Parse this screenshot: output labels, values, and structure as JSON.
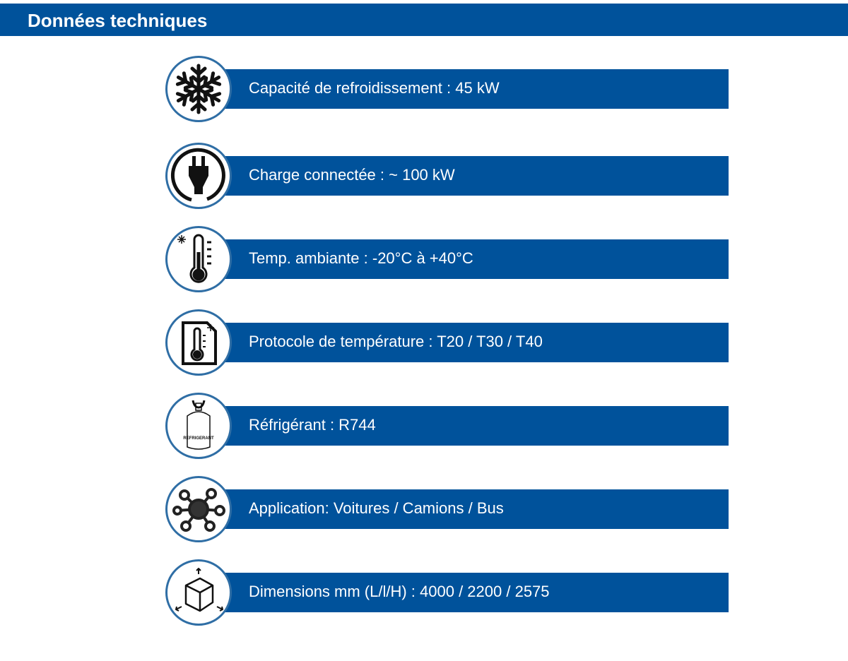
{
  "header": {
    "title": "Données techniques"
  },
  "colors": {
    "brand": "#00529b",
    "circle_border": "#2f6ea5"
  },
  "items": [
    {
      "icon": "snowflake-icon",
      "label": "Capacité de refroidissement : 45 kW"
    },
    {
      "icon": "plug-icon",
      "label": "Charge connectée : ~ 100 kW"
    },
    {
      "icon": "thermometer-icon",
      "label": "Temp. ambiante : -20°C à +40°C"
    },
    {
      "icon": "temperature-protocol-icon",
      "label": "Protocole de température : T20 / T30 / T40"
    },
    {
      "icon": "refrigerant-cylinder-icon",
      "label": "Réfrigérant : R744",
      "icon_text": "REFRIGERANT"
    },
    {
      "icon": "network-hub-icon",
      "label": "Application: Voitures / Camions / Bus"
    },
    {
      "icon": "box-dimensions-icon",
      "label": "Dimensions mm (L/l/H) : 4000 / 2200 / 2575"
    }
  ]
}
